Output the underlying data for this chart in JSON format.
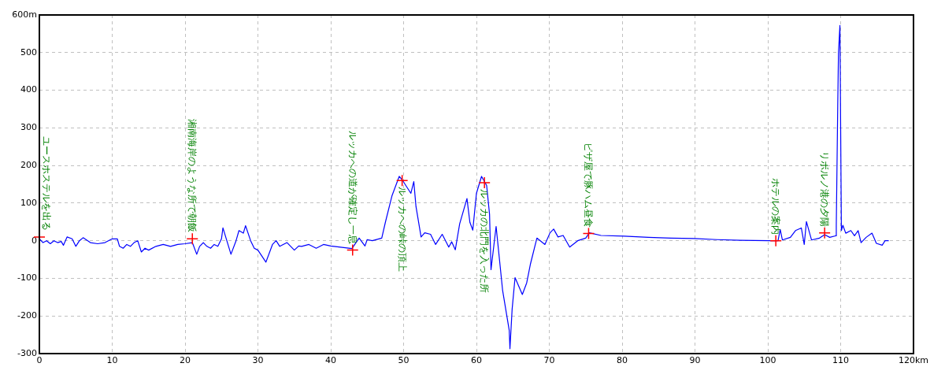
{
  "chart_data": {
    "type": "line",
    "x": [
      0,
      0.5,
      1,
      1.5,
      2,
      2.5,
      3,
      3.3,
      3.8,
      4.5,
      5,
      5.5,
      6,
      7,
      8,
      9,
      10,
      10.7,
      11,
      11.5,
      12,
      12.5,
      13,
      13.5,
      14,
      14.5,
      15,
      16,
      17,
      18,
      19,
      20,
      21,
      21.6,
      22,
      22.5,
      23,
      23.5,
      24,
      24.5,
      25,
      25.2,
      26.3,
      27,
      27.4,
      28,
      28.3,
      29,
      29.5,
      30,
      31.1,
      32,
      32.5,
      33,
      34,
      35,
      35.6,
      36,
      37,
      38,
      39,
      40,
      42.9,
      43.9,
      44.7,
      45,
      45.7,
      47,
      47.5,
      48.4,
      49.4,
      49.8,
      51,
      51.4,
      51.7,
      52.4,
      52.9,
      53.7,
      54.4,
      55.3,
      56.2,
      56.6,
      57.1,
      57.7,
      58.7,
      59.1,
      59.5,
      60,
      60.7,
      61.4,
      61.8,
      62,
      62.7,
      63.6,
      64.5,
      64.6,
      64.9,
      65.3,
      66.3,
      66.9,
      67.4,
      68.3,
      69.4,
      70.1,
      70.6,
      71.2,
      71.9,
      72.8,
      73.9,
      75,
      75.5,
      77.1,
      80.3,
      83.6,
      86.7,
      89.9,
      93,
      96.2,
      100.2,
      101.4,
      101.7,
      102,
      103.1,
      103.8,
      104.6,
      105,
      105.3,
      106,
      107.1,
      107.8,
      108.5,
      109.3,
      109.4,
      109.6,
      109.7,
      109.9,
      110,
      110.1,
      110.3,
      110.7,
      111.4,
      111.9,
      112.4,
      112.8,
      113.5,
      114.3,
      114.9,
      115.7,
      116.1,
      116.6
    ],
    "series": [
      {
        "color": "#0000ff",
        "values": [
          5,
          -5,
          0,
          -8,
          0,
          -5,
          -2,
          -12,
          10,
          5,
          -15,
          0,
          8,
          -5,
          -8,
          -5,
          5,
          5,
          -15,
          -20,
          -10,
          -15,
          -5,
          0,
          -30,
          -20,
          -25,
          -15,
          -10,
          -15,
          -10,
          -8,
          -5,
          -36,
          -15,
          -5,
          -15,
          -20,
          -10,
          -15,
          5,
          34,
          -36,
          0,
          27,
          20,
          40,
          0,
          -20,
          -25,
          -57,
          -10,
          0,
          -15,
          -5,
          -25,
          -14,
          -15,
          -10,
          -20,
          -10,
          -14,
          -21,
          7,
          -14,
          3,
          0,
          7,
          49,
          119,
          171,
          162,
          126,
          157,
          91,
          10,
          21,
          17,
          -10,
          17,
          -17,
          -3,
          -24,
          45,
          112,
          49,
          28,
          126,
          171,
          147,
          70,
          -77,
          38,
          -133,
          -238,
          -287,
          -182,
          -98,
          -143,
          -112,
          -63,
          7,
          -10,
          21,
          31,
          10,
          14,
          -17,
          0,
          7,
          21,
          14,
          12,
          9,
          7,
          6,
          3,
          1,
          0,
          0,
          30,
          2,
          9,
          27,
          34,
          -10,
          51,
          2,
          7,
          16,
          9,
          13,
          41,
          359,
          499,
          572,
          299,
          27,
          41,
          20,
          27,
          13,
          27,
          -5,
          9,
          20,
          -7,
          -12,
          0,
          0
        ]
      }
    ],
    "xlim": [
      0,
      120
    ],
    "xticks": [
      0,
      10,
      20,
      30,
      40,
      50,
      60,
      70,
      80,
      90,
      100,
      110,
      {
        "value": 120,
        "label": "120km"
      }
    ],
    "ylim": [
      -300,
      600
    ],
    "yticks": [
      -300,
      -200,
      -100,
      0,
      100,
      200,
      300,
      400,
      500,
      {
        "value": 600,
        "label": "600m"
      }
    ],
    "grid": true,
    "legend": false,
    "marker": "none",
    "line_style": "solid",
    "annotations": [
      {
        "text": "ユースホステルを出る",
        "x": 0,
        "y": 10
      },
      {
        "text": "湘南海岸のような所で朝飯",
        "x": 21,
        "y": 5
      },
      {
        "text": "ルッカへの道が確定し一息",
        "x": 43,
        "y": -25
      },
      {
        "text": "ルッカへの峠の頂上",
        "x": 49.8,
        "y": 160
      },
      {
        "text": "ルッカの北門を入った所",
        "x": 61.1,
        "y": 154
      },
      {
        "text": "ピザ屋で豚ハム昼食",
        "x": 75.4,
        "y": 19
      },
      {
        "text": "ホテルの案内",
        "x": 101.1,
        "y": 0
      },
      {
        "text": "リボルノ港の夕陽",
        "x": 107.8,
        "y": 21
      }
    ]
  }
}
